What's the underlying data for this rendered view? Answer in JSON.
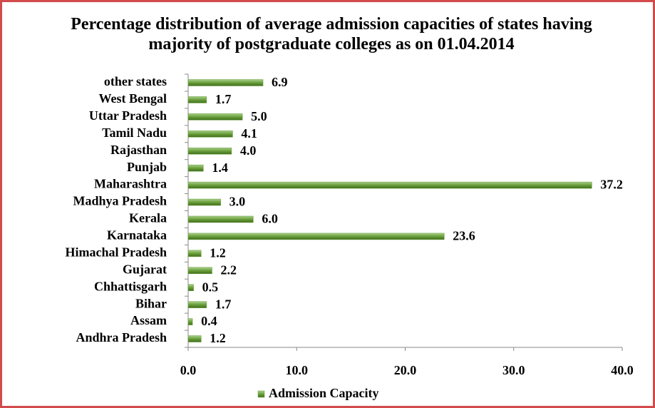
{
  "chart_data": {
    "type": "hbar",
    "title": "Percentage distribution of average admission capacities of states having majority of postgraduate colleges as on 01.04.2014",
    "categories": [
      "Andhra Pradesh",
      "Assam",
      "Bihar",
      "Chhattisgarh",
      "Gujarat",
      "Himachal Pradesh",
      "Karnataka",
      "Kerala",
      "Madhya Pradesh",
      "Maharashtra",
      "Punjab",
      "Rajasthan",
      "Tamil Nadu",
      "Uttar Pradesh",
      "West Bengal",
      "other states"
    ],
    "series": [
      {
        "name": "Admission Capacity",
        "color": "#6a9e3a",
        "values": [
          1.2,
          0.4,
          1.7,
          0.5,
          2.2,
          1.2,
          23.6,
          6.0,
          3.0,
          37.2,
          1.4,
          4.0,
          4.1,
          5.0,
          1.7,
          6.9
        ],
        "value_labels": [
          "1.2",
          "0.4",
          "1.7",
          "0.5",
          "2.2",
          "1.2",
          "23.6",
          "6.0",
          "3.0",
          "37.2",
          "1.4",
          "4.0",
          "4.1",
          "5.0",
          "1.7",
          "6.9"
        ]
      }
    ],
    "xlim": [
      0,
      40
    ],
    "xticks": [
      {
        "value": 0,
        "label": "0.0"
      },
      {
        "value": 10,
        "label": "10.0"
      },
      {
        "value": 20,
        "label": "20.0"
      },
      {
        "value": 30,
        "label": "30.0"
      },
      {
        "value": 40,
        "label": "40.0"
      }
    ],
    "grid": false,
    "legend": "bottom"
  }
}
